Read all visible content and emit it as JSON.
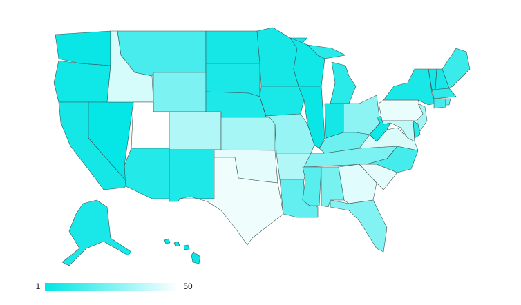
{
  "map": {
    "type": "choropleth",
    "min_color": "#00e5e5",
    "max_color": "#ffffff",
    "legend": {
      "min": 1,
      "max": 50
    },
    "values": [
      3,
      4,
      5,
      2,
      42,
      15,
      25,
      50,
      35,
      8,
      7,
      5,
      6,
      7,
      33,
      45,
      47,
      5,
      6,
      30,
      35,
      20,
      4,
      3,
      9,
      5,
      28,
      22,
      25,
      18,
      24,
      44,
      26,
      45,
      14,
      43,
      4,
      46,
      6,
      32,
      38,
      9,
      5,
      6,
      12,
      10,
      15,
      20,
      6,
      3
    ]
  }
}
